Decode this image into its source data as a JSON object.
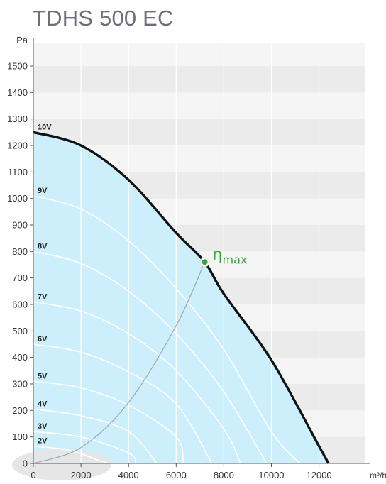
{
  "title": "TDHS 500 EC",
  "chart_data": {
    "type": "line",
    "title": "TDHS 500 EC",
    "xlabel": "m³/h",
    "ylabel": "Pa",
    "xlim": [
      0,
      13800
    ],
    "ylim": [
      0,
      1600
    ],
    "x_ticks": [
      0,
      2000,
      4000,
      6000,
      8000,
      10000,
      12000
    ],
    "x_tick_labels": [
      "0",
      "2000",
      "4000",
      "6000",
      "8000",
      "10000",
      "12000"
    ],
    "y_ticks": [
      0,
      100,
      200,
      300,
      400,
      500,
      600,
      700,
      800,
      900,
      1000,
      1100,
      1200,
      1300,
      1400,
      1500
    ],
    "y_tick_labels": [
      "0",
      "100",
      "200",
      "300",
      "400",
      "500",
      "600",
      "700",
      "800",
      "900",
      "1000",
      "1100",
      "1200",
      "1300",
      "1400",
      "1500"
    ],
    "grid": true,
    "colors": {
      "fill": "#cdeefb",
      "max_curve": "#111111",
      "voltage_curves": "#ffffff",
      "efficiency_line": "#9aa7b4",
      "eta_point": "#3aa044"
    },
    "series": [
      {
        "name": "10V",
        "x": [
          0,
          2000,
          4000,
          6000,
          7200,
          8000,
          10000,
          12000,
          12400
        ],
        "y": [
          1250,
          1200,
          1070,
          870,
          760,
          640,
          390,
          65,
          0
        ]
      },
      {
        "name": "9V",
        "x": [
          0,
          2000,
          4000,
          6000,
          8000,
          10000,
          11200
        ],
        "y": [
          1010,
          960,
          840,
          660,
          430,
          120,
          0
        ]
      },
      {
        "name": "8V",
        "x": [
          0,
          2000,
          4000,
          6000,
          8000,
          9800
        ],
        "y": [
          800,
          755,
          650,
          490,
          270,
          0
        ]
      },
      {
        "name": "7V",
        "x": [
          0,
          2000,
          4000,
          6000,
          8000,
          8700
        ],
        "y": [
          610,
          575,
          490,
          350,
          130,
          0
        ]
      },
      {
        "name": "6V",
        "x": [
          0,
          2000,
          4000,
          6000,
          7500
        ],
        "y": [
          450,
          420,
          345,
          225,
          0
        ]
      },
      {
        "name": "5V",
        "x": [
          0,
          2000,
          4000,
          6000,
          6300
        ],
        "y": [
          310,
          285,
          220,
          100,
          0
        ]
      },
      {
        "name": "4V",
        "x": [
          0,
          2000,
          4000,
          5200
        ],
        "y": [
          205,
          180,
          120,
          0
        ]
      },
      {
        "name": "3V",
        "x": [
          0,
          2000,
          4000,
          4300
        ],
        "y": [
          120,
          100,
          40,
          0
        ]
      },
      {
        "name": "2V",
        "x": [
          0,
          1500,
          2800,
          3200
        ],
        "y": [
          65,
          50,
          10,
          0
        ]
      }
    ],
    "efficiency_line": {
      "x": [
        0,
        2000,
        4000,
        6000,
        7200
      ],
      "y": [
        0,
        60,
        230,
        520,
        760
      ]
    },
    "eta_max": {
      "label": "η",
      "subscript": "max",
      "x": 7200,
      "y": 760
    }
  }
}
